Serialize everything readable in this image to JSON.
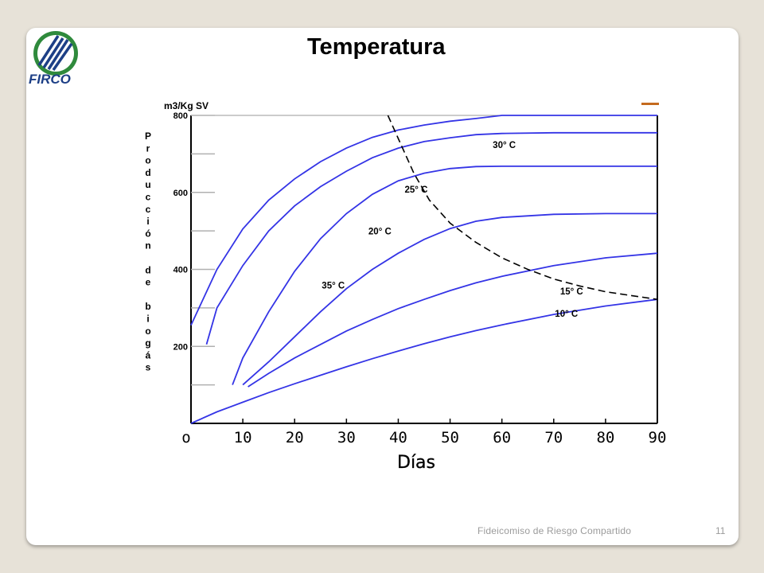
{
  "slide": {
    "title": "Temperatura",
    "logo_text": "FIRCO",
    "footer": "Fideicomiso de Riesgo Compartido",
    "page_number": "11",
    "colors": {
      "background": "#e7e2d8",
      "logo_green": "#2f8a3c",
      "logo_dark": "#1d3f86",
      "accent": "#c46a1e"
    }
  },
  "chart_data": {
    "type": "line",
    "ylabel_top": "m3/Kg SV",
    "ylabel_vertical": [
      "Producción",
      "de",
      "biogás"
    ],
    "xlabel": "Días",
    "xlim": [
      0,
      90
    ],
    "ylim": [
      0,
      800
    ],
    "x_ticks": [
      0,
      10,
      20,
      30,
      40,
      50,
      60,
      70,
      80,
      90
    ],
    "y_ticks": [
      200,
      400,
      600,
      800
    ],
    "series": [
      {
        "name": "35° C",
        "x": [
          0,
          5,
          10,
          15,
          20,
          25,
          30,
          35,
          40,
          45,
          50,
          55,
          60,
          70,
          80,
          90
        ],
        "y": [
          255,
          400,
          505,
          580,
          635,
          680,
          715,
          743,
          762,
          775,
          785,
          792,
          800,
          800,
          800,
          800
        ]
      },
      {
        "name": "30° C",
        "x": [
          3,
          5,
          10,
          15,
          20,
          25,
          30,
          35,
          40,
          45,
          50,
          55,
          60,
          70,
          80,
          90
        ],
        "y": [
          205,
          300,
          410,
          500,
          565,
          615,
          655,
          690,
          715,
          732,
          742,
          750,
          753,
          755,
          755,
          755
        ]
      },
      {
        "name": "25° C",
        "x": [
          8,
          10,
          15,
          20,
          25,
          30,
          35,
          40,
          45,
          50,
          55,
          60,
          70,
          80,
          90
        ],
        "y": [
          100,
          170,
          290,
          395,
          480,
          545,
          595,
          630,
          650,
          662,
          667,
          668,
          668,
          668,
          668
        ]
      },
      {
        "name": "20° C",
        "x": [
          10,
          15,
          20,
          25,
          30,
          35,
          40,
          45,
          50,
          55,
          60,
          70,
          80,
          90
        ],
        "y": [
          100,
          160,
          225,
          290,
          350,
          400,
          442,
          478,
          506,
          525,
          535,
          543,
          545,
          545
        ]
      },
      {
        "name": "15° C",
        "x": [
          11,
          15,
          20,
          25,
          30,
          35,
          40,
          45,
          50,
          55,
          60,
          70,
          80,
          90
        ],
        "y": [
          95,
          130,
          170,
          205,
          240,
          270,
          298,
          322,
          345,
          365,
          382,
          410,
          430,
          442
        ]
      },
      {
        "name": "10° C",
        "x": [
          0,
          5,
          10,
          15,
          20,
          25,
          30,
          35,
          40,
          45,
          50,
          55,
          60,
          70,
          80,
          90
        ],
        "y": [
          0,
          30,
          55,
          80,
          103,
          125,
          147,
          168,
          188,
          207,
          225,
          241,
          256,
          283,
          305,
          322
        ]
      }
    ],
    "optimum_curve": {
      "x": [
        38,
        40,
        43,
        46,
        50,
        55,
        60,
        65,
        70,
        75,
        80,
        85,
        90
      ],
      "y": [
        800,
        740,
        650,
        580,
        520,
        470,
        430,
        400,
        375,
        357,
        342,
        332,
        322
      ]
    },
    "grid": false
  }
}
